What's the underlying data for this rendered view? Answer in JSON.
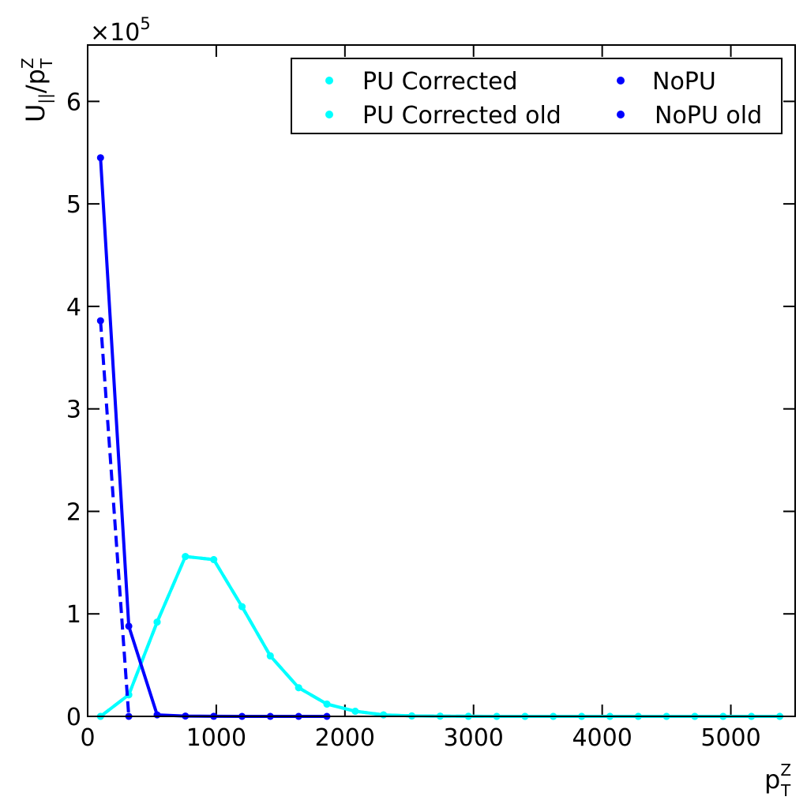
{
  "chart_data": {
    "type": "line",
    "xlabel_main": "p",
    "xlabel_sup": "Z",
    "xlabel_sub": "T",
    "ylabel_main": "U",
    "ylabel_sub1": "||",
    "ylabel_slash": "/p",
    "ylabel_sup": "Z",
    "ylabel_sub2": "T",
    "y_multiplier_base": "×10",
    "y_multiplier_exp": "5",
    "xlim": [
      0,
      5500
    ],
    "ylim": [
      0,
      655000
    ],
    "x_ticks": [
      0,
      1000,
      2000,
      3000,
      4000,
      5000
    ],
    "x_tick_labels": [
      "0",
      "1000",
      "2000",
      "3000",
      "4000",
      "5000"
    ],
    "y_ticks": [
      0,
      100000,
      200000,
      300000,
      400000,
      500000,
      600000
    ],
    "y_tick_labels": [
      "0",
      "1",
      "2",
      "3",
      "4",
      "5",
      "6"
    ],
    "grid": false,
    "legend_placement": "top-right",
    "legend_columns": 2,
    "series": [
      {
        "name": "PU Corrected",
        "color": "#00ffff",
        "dash": "solid",
        "x": [
          100,
          320,
          540,
          760,
          980,
          1200,
          1420,
          1640,
          1860,
          2080,
          2300,
          2520,
          2740,
          2960,
          3180,
          3400,
          3620,
          3840,
          4060,
          4280,
          4500,
          4720,
          4940,
          5160,
          5380
        ],
        "y": [
          0,
          21000,
          92000,
          156000,
          153000,
          107000,
          59000,
          28000,
          12000,
          5000,
          1500,
          500,
          200,
          100,
          0,
          0,
          0,
          0,
          0,
          0,
          0,
          0,
          0,
          0,
          0
        ]
      },
      {
        "name": "PU Corrected old",
        "color": "#00ffff",
        "dash": "dashed",
        "x": [
          100,
          320,
          540,
          760,
          980,
          1200,
          1420,
          1640,
          1860,
          2080,
          2300,
          2520,
          2740,
          2960,
          3180,
          3400,
          3620,
          3840,
          4060,
          4280,
          4500,
          4720,
          4940,
          5160,
          5380
        ],
        "y": [
          0,
          21000,
          92000,
          156000,
          153000,
          107000,
          59000,
          28000,
          12000,
          5000,
          1500,
          500,
          200,
          100,
          0,
          0,
          0,
          0,
          0,
          0,
          0,
          0,
          0,
          0,
          0
        ]
      },
      {
        "name": "NoPU",
        "color": "#0000ff",
        "dash": "solid",
        "x": [
          100,
          320,
          540,
          760,
          980,
          1200,
          1420,
          1640,
          1860
        ],
        "y": [
          545000,
          88000,
          1500,
          300,
          100,
          0,
          0,
          0,
          0
        ]
      },
      {
        "name": "NoPU old",
        "color": "#0000ff",
        "dash": "dashed",
        "x": [
          100,
          320
        ],
        "y": [
          386000,
          0
        ]
      }
    ]
  }
}
